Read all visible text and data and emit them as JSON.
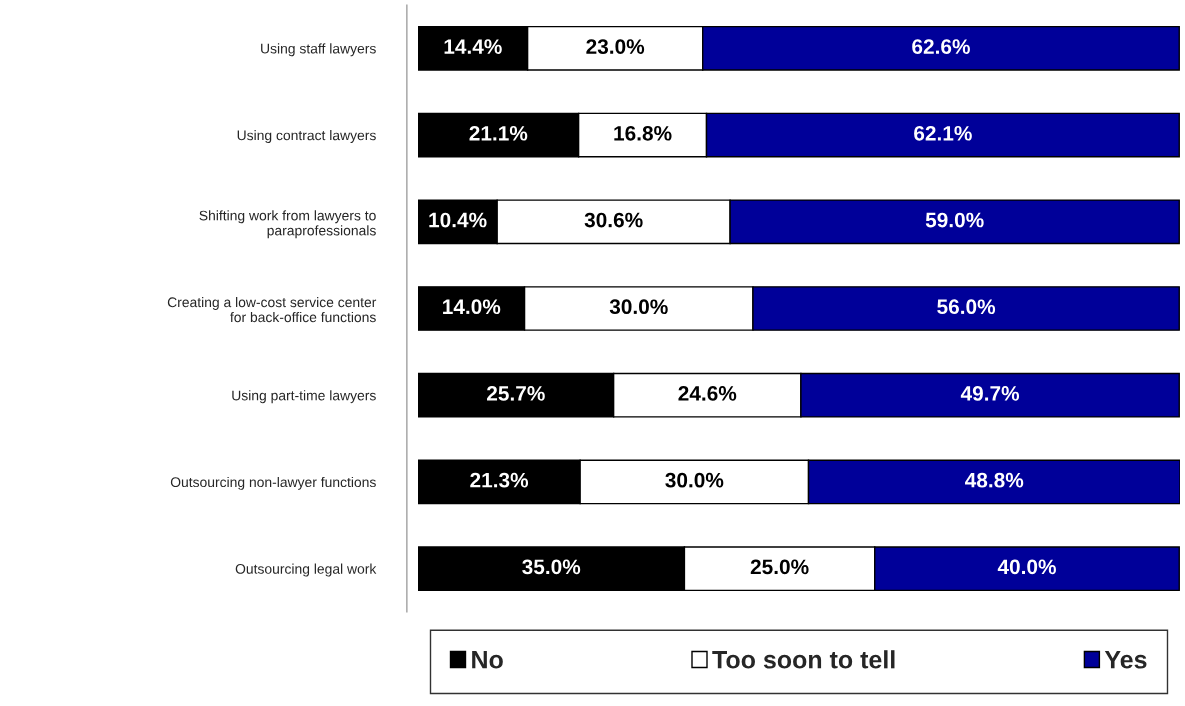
{
  "chart_data": {
    "type": "bar",
    "orientation": "horizontal",
    "stacked": true,
    "legend": "bottom",
    "tick_labels": "y",
    "grid": false,
    "categories": [
      "Using staff lawyers",
      "Using contract lawyers",
      "Shifting work from lawyers to\nparaprofessionals",
      "Creating a low-cost service center\nfor back-office functions",
      "Using part-time lawyers",
      "Outsourcing non-lawyer functions",
      "Outsourcing legal work"
    ],
    "series": [
      {
        "name": "No",
        "color": "#000000",
        "values": [
          14.4,
          21.1,
          10.4,
          14.0,
          25.7,
          21.3,
          35.0
        ],
        "value_labels": [
          "14.4%",
          "21.1%",
          "10.4%",
          "14.0%",
          "25.7%",
          "21.3%",
          "35.0%"
        ]
      },
      {
        "name": "Too soon to tell",
        "color": "#ffffff",
        "values": [
          23.0,
          16.8,
          30.6,
          30.0,
          24.6,
          30.0,
          25.0
        ],
        "value_labels": [
          "23.0%",
          "16.8%",
          "30.6%",
          "30.0%",
          "24.6%",
          "30.0%",
          "25.0%"
        ]
      },
      {
        "name": "Yes",
        "color": "#000099",
        "values": [
          62.6,
          62.1,
          59.0,
          56.0,
          49.7,
          48.8,
          40.0
        ],
        "value_labels": [
          "62.6%",
          "62.1%",
          "59.0%",
          "56.0%",
          "49.7%",
          "48.8%",
          "40.0%"
        ]
      }
    ]
  }
}
